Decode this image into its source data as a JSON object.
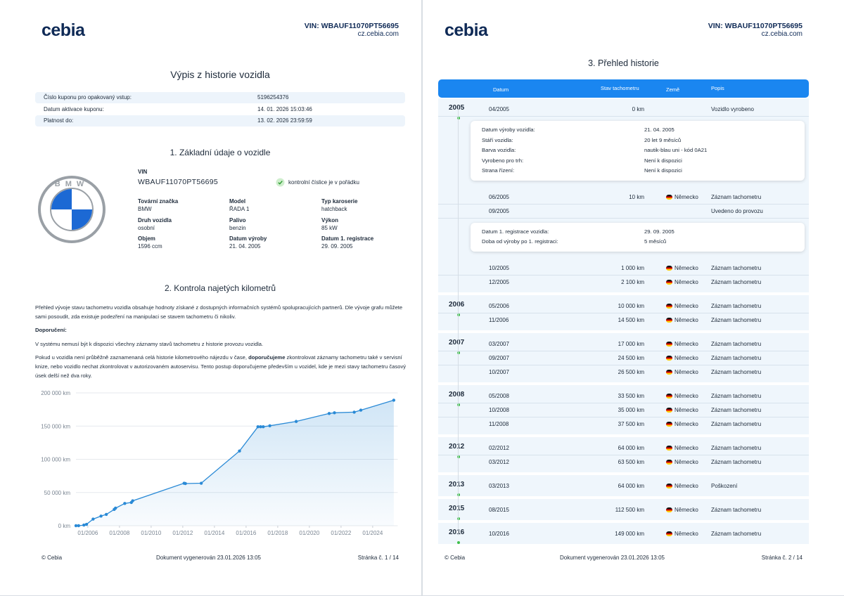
{
  "page1": {
    "header": {
      "logo": "cebia",
      "vin": "VIN: WBAUF11070PT56695",
      "site": "cz.cebia.com"
    },
    "title": "Výpis z historie vozidla",
    "coupon_rows": [
      {
        "label": "Číslo kuponu pro opakovaný vstup:",
        "value": "5196254376"
      },
      {
        "label": "Datum aktivace kuponu:",
        "value": "14. 01. 2026 15:03:46"
      },
      {
        "label": "Platnost do:",
        "value": "13. 02. 2026 23:59:59"
      }
    ],
    "section1": {
      "title": "1. Základní údaje o vozidle",
      "brand_logo": "BMW",
      "vin_label": "VIN",
      "vin_value": "WBAUF11070PT56695",
      "vin_check": "kontrolní číslice je v pořádku",
      "fields": [
        {
          "label": "Tovární značka",
          "value": "BMW"
        },
        {
          "label": "Model",
          "value": "ŘADA 1"
        },
        {
          "label": "Typ karoserie",
          "value": "hatchback"
        },
        {
          "label": "Druh vozidla",
          "value": "osobní"
        },
        {
          "label": "Palivo",
          "value": "benzin"
        },
        {
          "label": "Výkon",
          "value": "85 kW"
        },
        {
          "label": "Objem",
          "value": "1596 ccm"
        },
        {
          "label": "Datum výroby",
          "value": "21. 04. 2005"
        },
        {
          "label": "Datum 1. registrace",
          "value": "29. 09. 2005"
        }
      ]
    },
    "section2": {
      "title": "2. Kontrola najetých kilometrů",
      "paragraphs": [
        [
          {
            "text": "Přehled vývoje stavu tachometru vozidla obsahuje hodnoty získané z dostupných informačních systémů spolupracujících partnerů. Dle vývoje grafu můžete sami posoudit, zda existuje podezření na manipulaci se stavem tachometru či nikoliv."
          }
        ],
        [
          {
            "text": "Doporučení:",
            "bold": true
          }
        ],
        [
          {
            "text": "V systému nemusí být k dispozici všechny záznamy stavů tachometru z historie provozu vozidla."
          }
        ],
        [
          {
            "text": "Pokud u vozidla není průběžně zaznamenaná celá historie kilometrového nájezdu v čase, "
          },
          {
            "text": "doporučujeme",
            "bold": true
          },
          {
            "text": " zkontrolovat záznamy tachometru také v servisní knize, nebo vozidlo nechat zkontrolovat v autorizovaném autoservisu. Tento postup doporučujeme především u vozidel, kde je mezi stavy tachometru časový úsek delší než dva roky."
          }
        ]
      ],
      "chart": {
        "type": "line",
        "x": [
          "2005-04",
          "2005-06",
          "2005-10",
          "2005-12",
          "2006-05",
          "2006-11",
          "2007-03",
          "2007-09",
          "2007-10",
          "2008-05",
          "2008-10",
          "2008-11",
          "2012-02",
          "2012-03",
          "2013-03",
          "2015-08",
          "2016-10",
          "2016-12",
          "2017-02",
          "2017-07",
          "2019-03",
          "2021-04",
          "2021-08",
          "2022-11",
          "2023-04",
          "2025-05"
        ],
        "values": [
          0,
          10,
          1000,
          2100,
          10000,
          14500,
          17000,
          24500,
          26500,
          33500,
          35000,
          37500,
          64000,
          63500,
          64000,
          112500,
          149000,
          149000,
          149000,
          150500,
          157000,
          169000,
          170000,
          171000,
          174000,
          189000
        ],
        "color": "#2a8ad6",
        "xlim": [
          "2005-04",
          "2025-08"
        ],
        "xticks": [
          {
            "value": "2006-01",
            "label": "01/2006"
          },
          {
            "value": "2008-01",
            "label": "01/2008"
          },
          {
            "value": "2010-01",
            "label": "01/2010"
          },
          {
            "value": "2012-01",
            "label": "01/2012"
          },
          {
            "value": "2014-01",
            "label": "01/2014"
          },
          {
            "value": "2016-01",
            "label": "01/2016"
          },
          {
            "value": "2018-01",
            "label": "01/2018"
          },
          {
            "value": "2020-01",
            "label": "01/2020"
          },
          {
            "value": "2022-01",
            "label": "01/2022"
          },
          {
            "value": "2024-01",
            "label": "01/2024"
          }
        ],
        "ylim": [
          0,
          200000
        ],
        "yticks": [
          {
            "value": 0,
            "label": "0 km"
          },
          {
            "value": 50000,
            "label": "50 000 km"
          },
          {
            "value": 100000,
            "label": "100 000 km"
          },
          {
            "value": 150000,
            "label": "150 000 km"
          },
          {
            "value": 200000,
            "label": "200 000 km"
          }
        ],
        "grid": true
      }
    },
    "footer": {
      "left": "© Cebia",
      "center": "Dokument vygenerován 23.01.2026 13:05",
      "right": "Stránka č. 1 / 14"
    }
  },
  "page2": {
    "header": {
      "logo": "cebia",
      "vin": "VIN: WBAUF11070PT56695",
      "site": "cz.cebia.com"
    },
    "title": "3. Přehled historie",
    "columns": [
      "Datum",
      "Stav tachometru",
      "Země",
      "Popis"
    ],
    "groups": [
      {
        "year": "2005",
        "items": [
          {
            "date": "04/2005",
            "km": "0 km",
            "description": "Vozidlo vyrobeno"
          },
          {
            "details": [
              {
                "label": "Datum výroby vozidla:",
                "value": "21. 04. 2005"
              },
              {
                "label": "Stáří vozidla:",
                "value": "20 let 9 měsíců"
              },
              {
                "label": "Barva vozidla:",
                "value": "nautik-blau uni - kód 0A21"
              },
              {
                "label": "Vyrobeno pro trh:",
                "value": "Není k dispozici"
              },
              {
                "label": "Strana řízení:",
                "value": "Není k dispozici"
              }
            ]
          },
          {
            "date": "06/2005",
            "km": "10 km",
            "country": "Německo",
            "description": "Záznam tachometru"
          },
          {
            "date": "09/2005",
            "description": "Uvedeno do provozu"
          },
          {
            "details": [
              {
                "label": "Datum 1. registrace vozidla:",
                "value": "29. 09. 2005"
              },
              {
                "label": "Doba od výroby po 1. registraci:",
                "value": "5 měsíců"
              }
            ]
          },
          {
            "date": "10/2005",
            "km": "1 000 km",
            "country": "Německo",
            "description": "Záznam tachometru"
          },
          {
            "date": "12/2005",
            "km": "2 100 km",
            "country": "Německo",
            "description": "Záznam tachometru"
          }
        ]
      },
      {
        "year": "2006",
        "items": [
          {
            "date": "05/2006",
            "km": "10 000 km",
            "country": "Německo",
            "description": "Záznam tachometru"
          },
          {
            "date": "11/2006",
            "km": "14 500 km",
            "country": "Německo",
            "description": "Záznam tachometru"
          }
        ]
      },
      {
        "year": "2007",
        "items": [
          {
            "date": "03/2007",
            "km": "17 000 km",
            "country": "Německo",
            "description": "Záznam tachometru"
          },
          {
            "date": "09/2007",
            "km": "24 500 km",
            "country": "Německo",
            "description": "Záznam tachometru"
          },
          {
            "date": "10/2007",
            "km": "26 500 km",
            "country": "Německo",
            "description": "Záznam tachometru"
          }
        ]
      },
      {
        "year": "2008",
        "items": [
          {
            "date": "05/2008",
            "km": "33 500 km",
            "country": "Německo",
            "description": "Záznam tachometru"
          },
          {
            "date": "10/2008",
            "km": "35 000 km",
            "country": "Německo",
            "description": "Záznam tachometru"
          },
          {
            "date": "11/2008",
            "km": "37 500 km",
            "country": "Německo",
            "description": "Záznam tachometru"
          }
        ]
      },
      {
        "year": "2012",
        "items": [
          {
            "date": "02/2012",
            "km": "64 000 km",
            "country": "Německo",
            "description": "Záznam tachometru"
          },
          {
            "date": "03/2012",
            "km": "63 500 km",
            "country": "Německo",
            "description": "Záznam tachometru"
          }
        ]
      },
      {
        "year": "2013",
        "items": [
          {
            "date": "03/2013",
            "km": "64 000 km",
            "country": "Německo",
            "description": "Poškození"
          }
        ]
      },
      {
        "year": "2015",
        "items": [
          {
            "date": "08/2015",
            "km": "112 500 km",
            "country": "Německo",
            "description": "Záznam tachometru"
          }
        ]
      },
      {
        "year": "2016",
        "items": [
          {
            "date": "10/2016",
            "km": "149 000 km",
            "country": "Německo",
            "description": "Záznam tachometru"
          }
        ]
      }
    ],
    "footer": {
      "left": "© Cebia",
      "center": "Dokument vygenerován 23.01.2026 13:05",
      "right": "Stránka č. 2 / 14"
    }
  }
}
